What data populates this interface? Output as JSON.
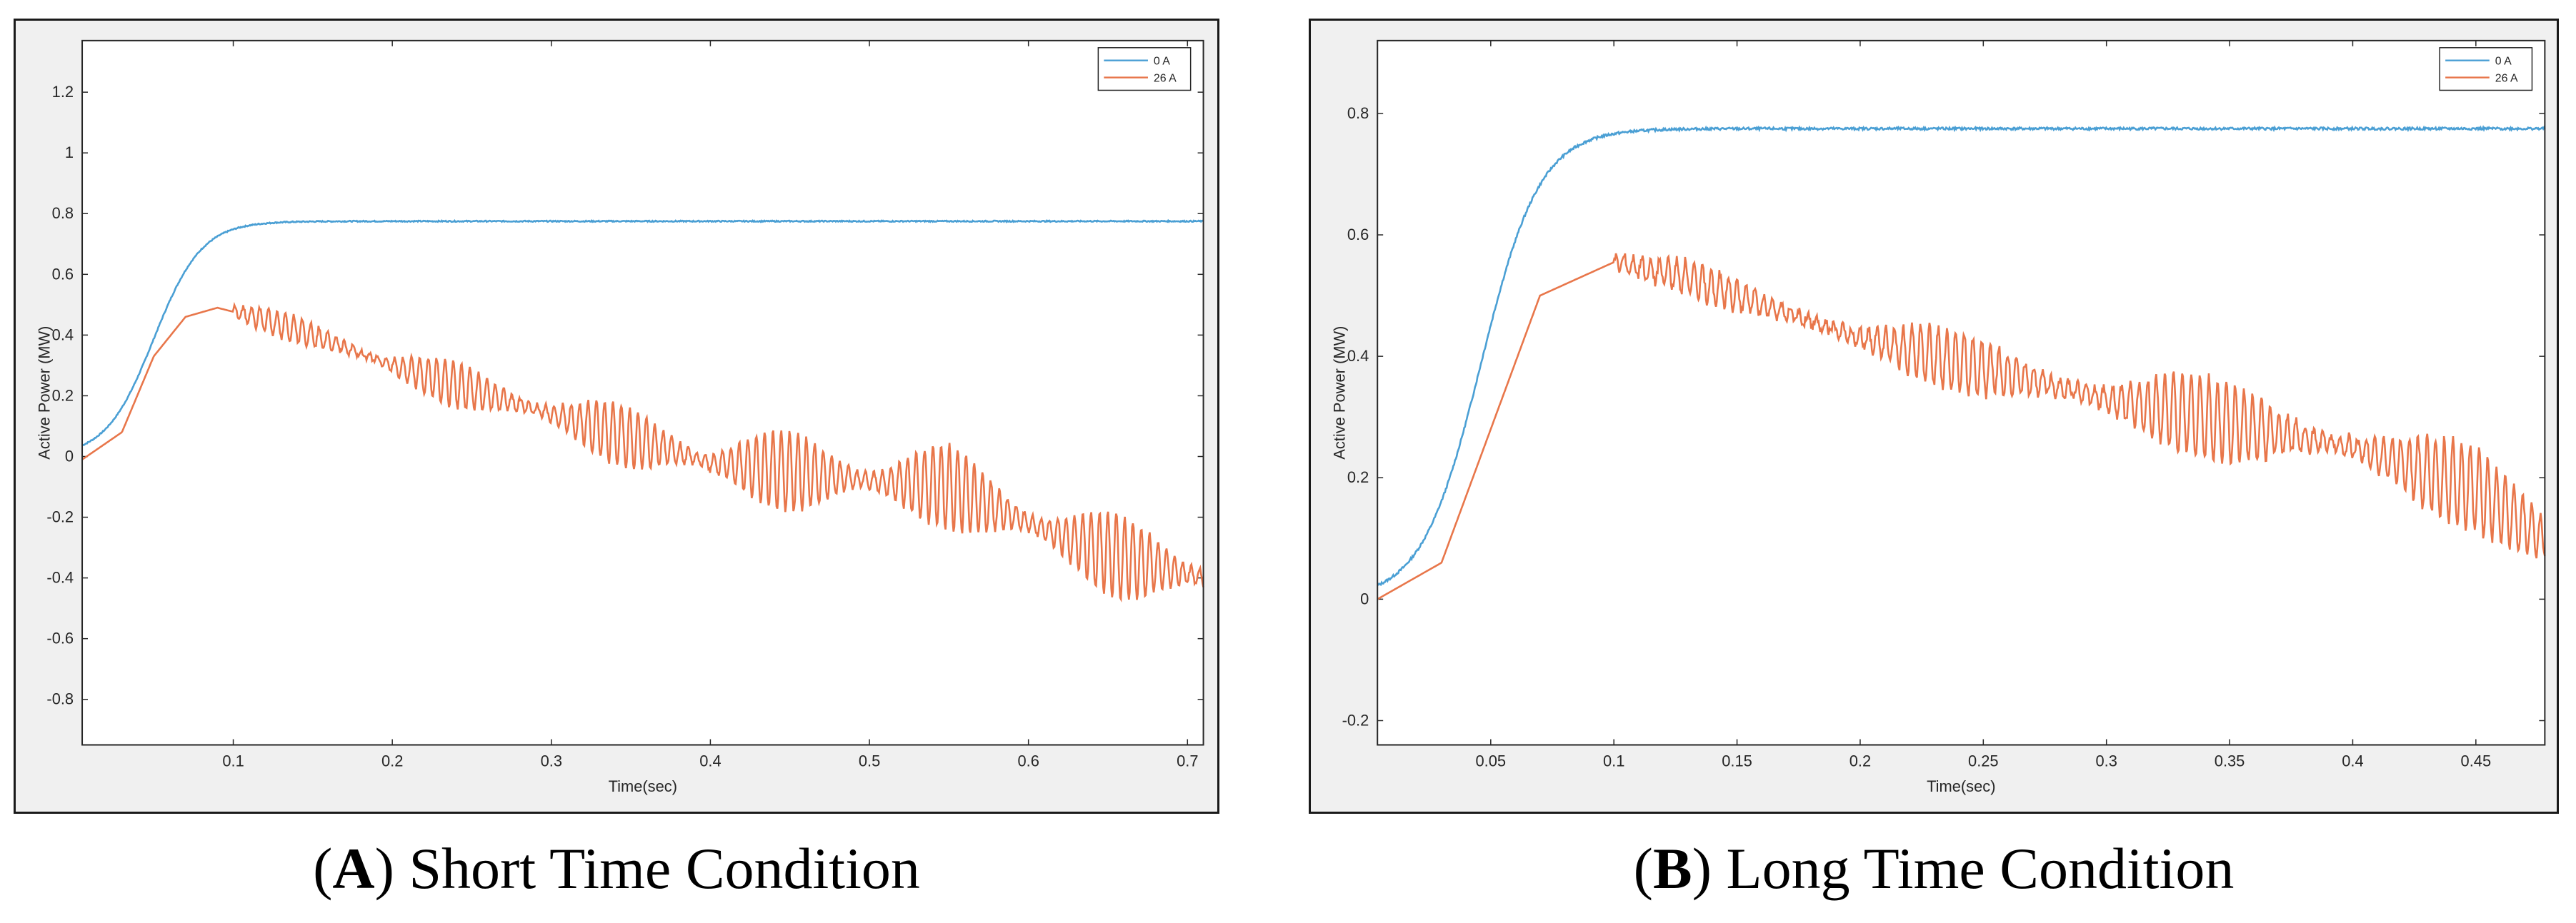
{
  "colors": {
    "series_0A": "#4a9fd4",
    "series_26A": "#e8764a",
    "axes": "#262626",
    "plot_bg": "#ffffff",
    "panel_bg": "#f0f0f0"
  },
  "captions": [
    {
      "letter": "A",
      "text": "Short Time Condition"
    },
    {
      "letter": "B",
      "text": "Long Time Condition"
    }
  ],
  "chart_data": [
    {
      "id": "A",
      "type": "line",
      "xlabel": "Time(sec)",
      "ylabel": "Active Power (MW)",
      "xlim": [
        0.005,
        0.71
      ],
      "ylim": [
        -0.95,
        1.37
      ],
      "xticks": [
        0.1,
        0.2,
        0.3,
        0.4,
        0.5,
        0.6,
        0.7
      ],
      "xtick_labels": [
        "0.1",
        "0.2",
        "0.3",
        "0.4",
        "0.5",
        "0.6",
        "0.7"
      ],
      "yticks": [
        1.2,
        1,
        0.8,
        0.6,
        0.4,
        0.2,
        0,
        -0.2,
        -0.4,
        -0.6,
        -0.8
      ],
      "ytick_labels": [
        "1.2",
        "1",
        "0.8",
        "0.6",
        "0.4",
        "0.2",
        "0",
        "-0.2",
        "-0.4",
        "-0.6",
        "-0.8"
      ],
      "legend": {
        "position": "top-right",
        "entries": [
          "0 A",
          "26 A"
        ]
      },
      "series": [
        {
          "name": "0 A",
          "steady_value": 0.775,
          "rise_midpoint": 0.05,
          "rise_width": 0.015,
          "x": [
            0.005,
            0.03,
            0.05,
            0.08,
            0.1,
            0.15,
            0.3,
            0.5,
            0.71
          ],
          "values": [
            0.0,
            0.1,
            0.38,
            0.72,
            0.77,
            0.775,
            0.775,
            0.775,
            0.775
          ]
        },
        {
          "name": "26 A",
          "x": [
            0.005,
            0.03,
            0.05,
            0.07,
            0.09,
            0.12,
            0.15,
            0.2,
            0.25,
            0.3,
            0.35,
            0.4,
            0.45,
            0.5,
            0.55,
            0.6,
            0.65,
            0.71
          ],
          "values": [
            -0.01,
            0.08,
            0.33,
            0.46,
            0.49,
            0.45,
            0.4,
            0.3,
            0.22,
            0.14,
            0.06,
            -0.02,
            -0.05,
            -0.08,
            -0.1,
            -0.22,
            -0.32,
            -0.4
          ]
        }
      ]
    },
    {
      "id": "B",
      "type": "line",
      "xlabel": "Time(sec)",
      "ylabel": "Active Power (MW)",
      "xlim": [
        0.004,
        0.478
      ],
      "ylim": [
        -0.24,
        0.92
      ],
      "xticks": [
        0.05,
        0.1,
        0.15,
        0.2,
        0.25,
        0.3,
        0.35,
        0.4,
        0.45
      ],
      "xtick_labels": [
        "0.05",
        "0.1",
        "0.15",
        "0.2",
        "0.25",
        "0.3",
        "0.35",
        "0.4",
        "0.45"
      ],
      "yticks": [
        0.8,
        0.6,
        0.4,
        0.2,
        0,
        -0.2
      ],
      "ytick_labels": [
        "0.8",
        "0.6",
        "0.4",
        "0.2",
        "0",
        "-0.2"
      ],
      "legend": {
        "position": "top-right",
        "entries": [
          "0 A",
          "26 A"
        ]
      },
      "series": [
        {
          "name": "0 A",
          "steady_value": 0.775,
          "rise_midpoint": 0.046,
          "rise_width": 0.012,
          "x": [
            0.004,
            0.03,
            0.05,
            0.07,
            0.1,
            0.15,
            0.3,
            0.478
          ],
          "values": [
            0.0,
            0.12,
            0.42,
            0.68,
            0.76,
            0.775,
            0.775,
            0.775
          ]
        },
        {
          "name": "26 A",
          "x": [
            0.004,
            0.03,
            0.05,
            0.07,
            0.1,
            0.13,
            0.15,
            0.2,
            0.25,
            0.3,
            0.35,
            0.4,
            0.45,
            0.478
          ],
          "values": [
            0.0,
            0.06,
            0.28,
            0.5,
            0.555,
            0.53,
            0.5,
            0.43,
            0.38,
            0.33,
            0.29,
            0.25,
            0.18,
            0.1
          ]
        }
      ]
    }
  ]
}
